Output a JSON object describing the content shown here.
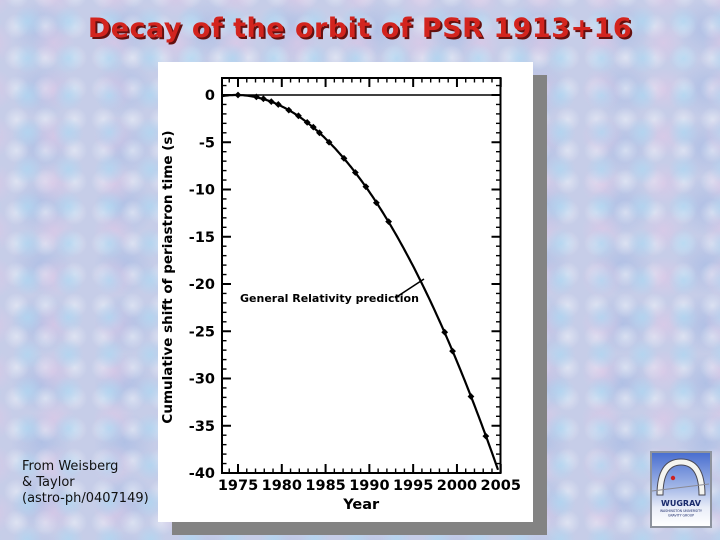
{
  "slide": {
    "title": "Decay of the orbit of PSR 1913+16",
    "title_color": "#d3241e",
    "title_shadow_color": "#64100f",
    "background_base_color": "#c6cde8"
  },
  "credit": {
    "line1": "From Weisberg",
    "line2": "& Taylor",
    "line3": "(astro-ph/0407149)"
  },
  "logo": {
    "acronym": "WUGRAV",
    "line1": "WASHINGTON UNIVERSITY",
    "line2": "GRAVITY GROUP",
    "arch_dot_color": "#cc2222"
  },
  "chart_data": {
    "type": "scatter",
    "title": "",
    "xlabel": "Year",
    "ylabel": "Cumulative shift of periastron time  (s)",
    "xlim": [
      1973.2,
      2005
    ],
    "ylim": [
      -40,
      1.8
    ],
    "x_major_ticks": [
      1975,
      1980,
      1985,
      1990,
      1995,
      2000,
      2005
    ],
    "x_minor_step": 1,
    "y_major_ticks": [
      0,
      -5,
      -10,
      -15,
      -20,
      -25,
      -30,
      -35,
      -40
    ],
    "y_minor_step": 1,
    "zero_line_y": 0,
    "grid": false,
    "annotation": {
      "text": "General Relativity prediction"
    },
    "curve": {
      "name": "General Relativity prediction",
      "model": "shift = -0.0444 * (year - 1974.8)^2",
      "vertex_year": 1974.8,
      "coefficient": -0.0444
    },
    "points": [
      [
        1975.0,
        0.0
      ],
      [
        1977.1,
        -0.2
      ],
      [
        1977.9,
        -0.4
      ],
      [
        1978.8,
        -0.7
      ],
      [
        1979.6,
        -1.0
      ],
      [
        1980.8,
        -1.6
      ],
      [
        1981.9,
        -2.2
      ],
      [
        1982.9,
        -2.9
      ],
      [
        1983.6,
        -3.4
      ],
      [
        1984.3,
        -4.0
      ],
      [
        1985.4,
        -5.0
      ],
      [
        1987.1,
        -6.7
      ],
      [
        1988.4,
        -8.2
      ],
      [
        1989.6,
        -9.7
      ],
      [
        1990.8,
        -11.4
      ],
      [
        1992.2,
        -13.4
      ],
      [
        1998.6,
        -25.1
      ],
      [
        1999.5,
        -27.1
      ],
      [
        2001.6,
        -31.9
      ],
      [
        2003.3,
        -36.1
      ]
    ]
  }
}
